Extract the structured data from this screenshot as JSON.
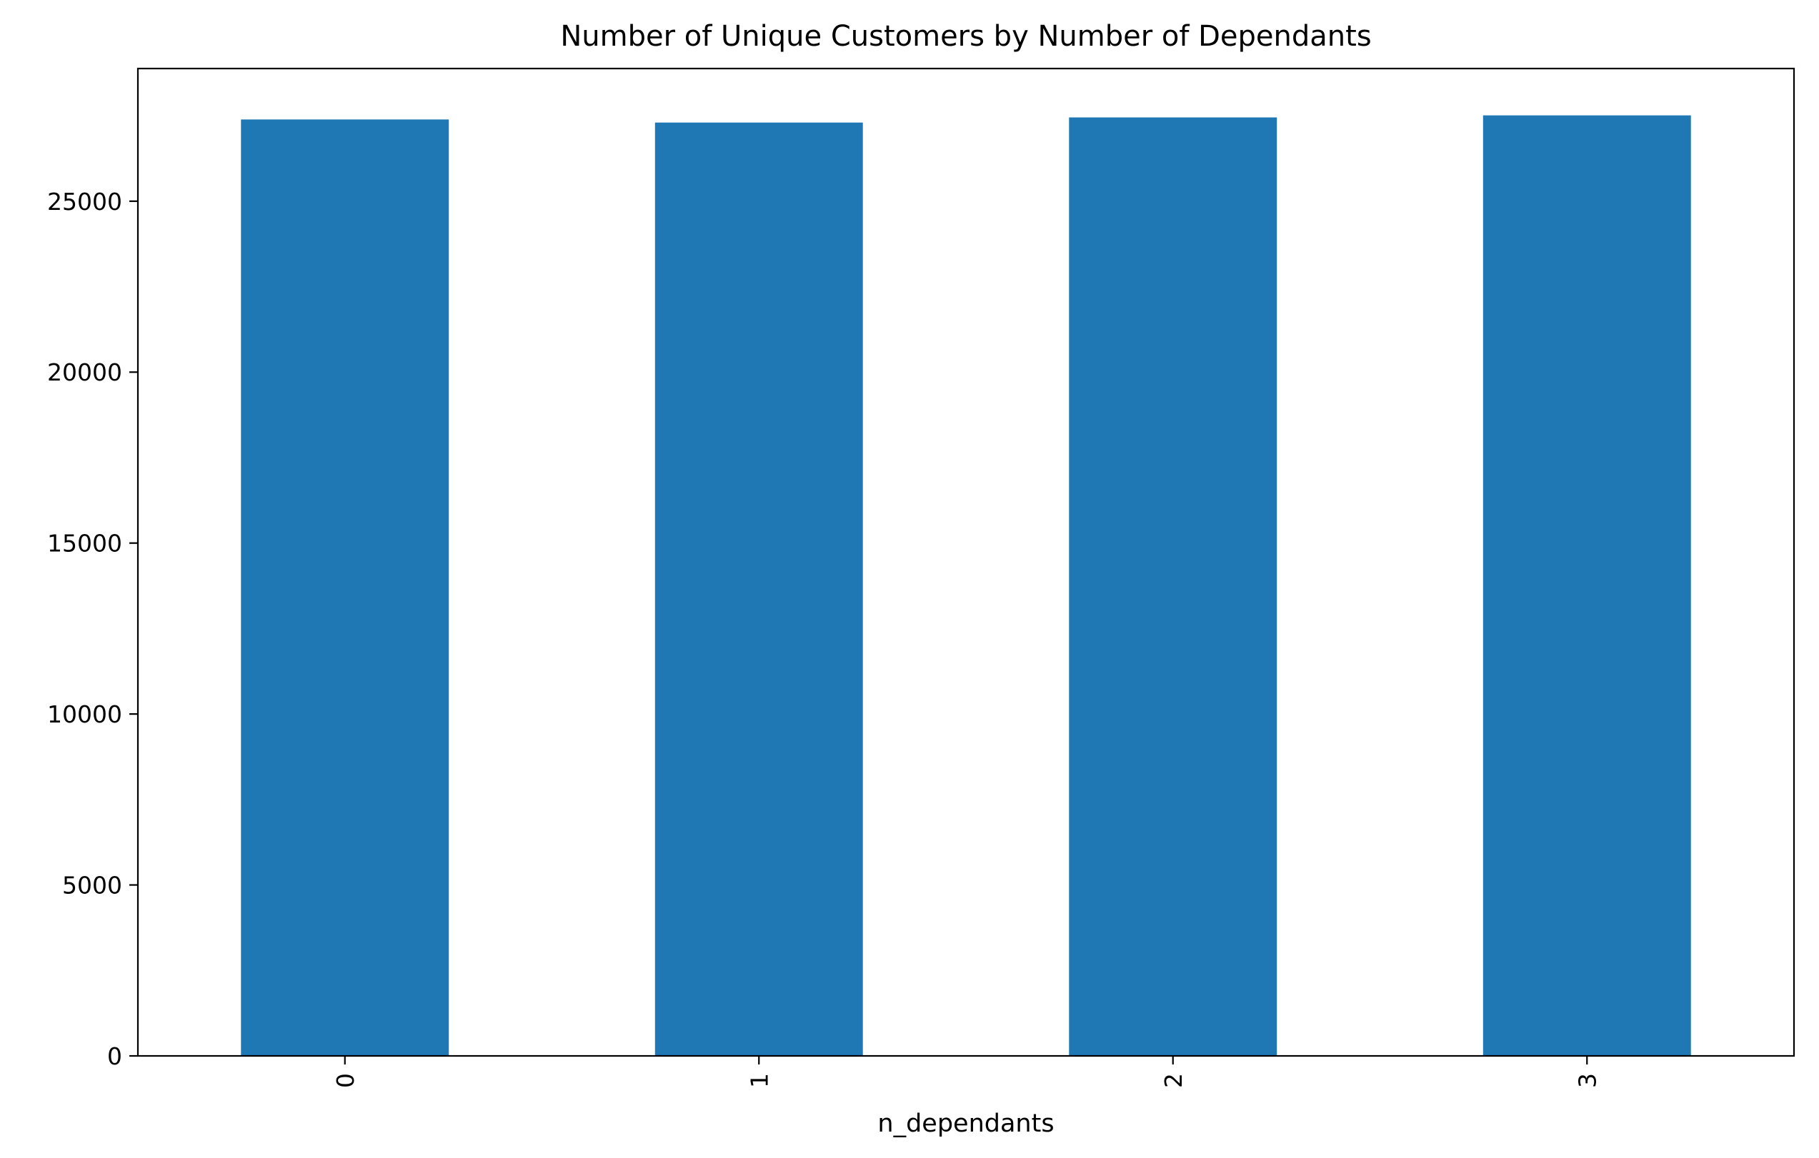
{
  "chart_data": {
    "type": "bar",
    "title": "Number of Unique Customers by Number of Dependants",
    "xlabel": "n_dependants",
    "ylabel": "",
    "categories": [
      "0",
      "1",
      "2",
      "3"
    ],
    "values": [
      27390,
      27300,
      27450,
      27510
    ],
    "ylim": [
      0,
      28880
    ],
    "yticks": [
      0,
      5000,
      10000,
      15000,
      20000,
      25000
    ],
    "bar_color": "#1f77b4",
    "grid": false,
    "legend": "none"
  }
}
